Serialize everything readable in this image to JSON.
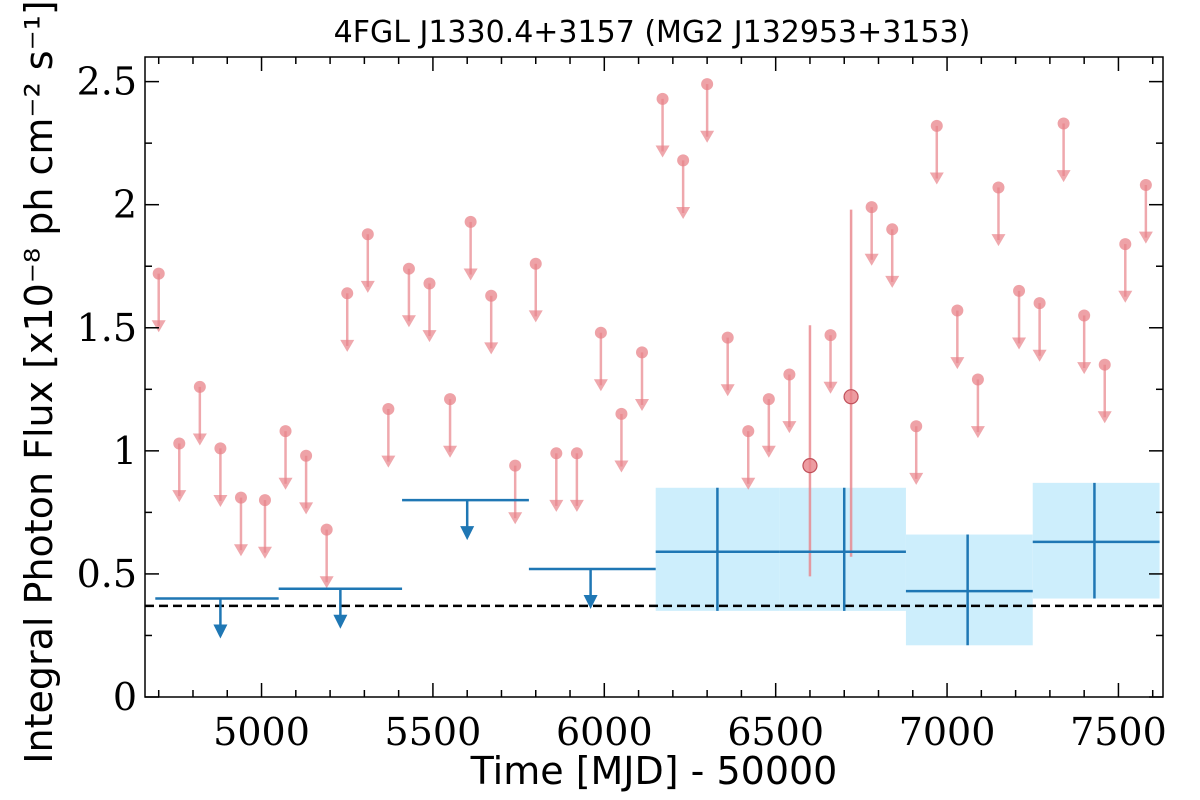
{
  "chart_data": {
    "type": "scatter",
    "title": "4FGL J1330.4+3157 (MG2 J132953+3153)",
    "xlabel": "Time [MJD] - 50000",
    "ylabel": "Integral Photon Flux [x10⁻⁸ ph cm⁻² s⁻¹]",
    "xlim": [
      4660,
      7630
    ],
    "ylim": [
      0,
      2.6
    ],
    "xticks": [
      5000,
      5500,
      6000,
      6500,
      7000,
      7500
    ],
    "xtick_labels": [
      "5000",
      "5500",
      "6000",
      "6500",
      "7000",
      "7500"
    ],
    "yticks": [
      0,
      0.5,
      1,
      1.5,
      2,
      2.5
    ],
    "ytick_labels": [
      "0",
      "0.5",
      "1",
      "1.5",
      "2",
      "2.5"
    ],
    "grid": false,
    "colors": {
      "short_bins": "#e8838a",
      "long_bins": "#1f77b4",
      "band": "#cdeefc",
      "reference_line": "#000000"
    },
    "reference_line": {
      "y": 0.37,
      "style": "dashed"
    },
    "short_bin_upper_limits": [
      {
        "x": 4700,
        "y": 1.72
      },
      {
        "x": 4760,
        "y": 1.03
      },
      {
        "x": 4820,
        "y": 1.26
      },
      {
        "x": 4880,
        "y": 1.01
      },
      {
        "x": 4940,
        "y": 0.81
      },
      {
        "x": 5010,
        "y": 0.8
      },
      {
        "x": 5070,
        "y": 1.08
      },
      {
        "x": 5130,
        "y": 0.98
      },
      {
        "x": 5190,
        "y": 0.68
      },
      {
        "x": 5250,
        "y": 1.64
      },
      {
        "x": 5310,
        "y": 1.88
      },
      {
        "x": 5370,
        "y": 1.17
      },
      {
        "x": 5430,
        "y": 1.74
      },
      {
        "x": 5490,
        "y": 1.68
      },
      {
        "x": 5550,
        "y": 1.21
      },
      {
        "x": 5610,
        "y": 1.93
      },
      {
        "x": 5670,
        "y": 1.63
      },
      {
        "x": 5740,
        "y": 0.94
      },
      {
        "x": 5800,
        "y": 1.76
      },
      {
        "x": 5860,
        "y": 0.99
      },
      {
        "x": 5920,
        "y": 0.99
      },
      {
        "x": 5990,
        "y": 1.48
      },
      {
        "x": 6050,
        "y": 1.15
      },
      {
        "x": 6110,
        "y": 1.4
      },
      {
        "x": 6170,
        "y": 2.43
      },
      {
        "x": 6230,
        "y": 2.18
      },
      {
        "x": 6300,
        "y": 2.49
      },
      {
        "x": 6360,
        "y": 1.46
      },
      {
        "x": 6420,
        "y": 1.08
      },
      {
        "x": 6480,
        "y": 1.21
      },
      {
        "x": 6540,
        "y": 1.31
      },
      {
        "x": 6660,
        "y": 1.47
      },
      {
        "x": 6780,
        "y": 1.99
      },
      {
        "x": 6840,
        "y": 1.9
      },
      {
        "x": 6910,
        "y": 1.1
      },
      {
        "x": 6970,
        "y": 2.32
      },
      {
        "x": 7030,
        "y": 1.57
      },
      {
        "x": 7090,
        "y": 1.29
      },
      {
        "x": 7150,
        "y": 2.07
      },
      {
        "x": 7210,
        "y": 1.65
      },
      {
        "x": 7270,
        "y": 1.6
      },
      {
        "x": 7340,
        "y": 2.33
      },
      {
        "x": 7400,
        "y": 1.55
      },
      {
        "x": 7460,
        "y": 1.35
      },
      {
        "x": 7520,
        "y": 1.84
      },
      {
        "x": 7580,
        "y": 2.08
      }
    ],
    "short_bin_detections": [
      {
        "x": 6600,
        "y": 0.94,
        "ylow": 0.49,
        "yhigh": 1.51
      },
      {
        "x": 6720,
        "y": 1.22,
        "ylow": 0.57,
        "yhigh": 1.98
      }
    ],
    "long_bin_upper_limits": [
      {
        "x": 4880,
        "x0": 4690,
        "x1": 5050,
        "y": 0.4
      },
      {
        "x": 5230,
        "x0": 5050,
        "x1": 5410,
        "y": 0.44
      },
      {
        "x": 5600,
        "x0": 5410,
        "x1": 5780,
        "y": 0.8
      },
      {
        "x": 5960,
        "x0": 5780,
        "x1": 6150,
        "y": 0.52
      }
    ],
    "long_bin_detections": [
      {
        "x": 6330,
        "x0": 6150,
        "x1": 6510,
        "y": 0.59,
        "ylow": 0.35,
        "yhigh": 0.85
      },
      {
        "x": 6700,
        "x0": 6510,
        "x1": 6880,
        "y": 0.59,
        "ylow": 0.35,
        "yhigh": 0.85
      },
      {
        "x": 7060,
        "x0": 6880,
        "x1": 7250,
        "y": 0.43,
        "ylow": 0.21,
        "yhigh": 0.66
      },
      {
        "x": 7430,
        "x0": 7250,
        "x1": 7620,
        "y": 0.63,
        "ylow": 0.4,
        "yhigh": 0.87
      }
    ]
  }
}
